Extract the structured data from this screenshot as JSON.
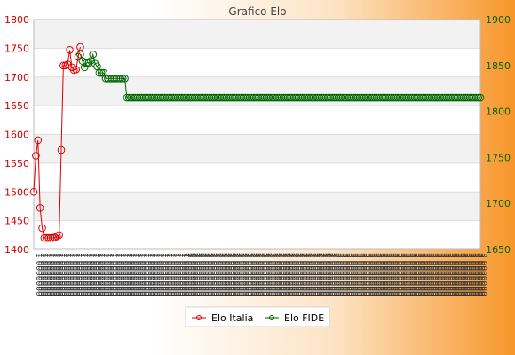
{
  "chart_data": {
    "type": "line",
    "title": "Grafico Elo",
    "y_left": {
      "min": 1400,
      "max": 1800,
      "ticks": [
        "1400",
        "1450",
        "1500",
        "1550",
        "1600",
        "1650",
        "1700",
        "1750",
        "1800"
      ]
    },
    "y_right": {
      "min": 1650,
      "max": 1900,
      "ticks": [
        "1650",
        "1700",
        "1750",
        "1800",
        "1850",
        "1900"
      ]
    },
    "grid": true,
    "legend": "bottom-center",
    "x_label_prefixes": [
      "1",
      "2",
      "3"
    ],
    "series": [
      {
        "name": "Elo Italia",
        "axis": "left",
        "color": "#dd0000",
        "x": [
          0,
          1,
          2,
          3,
          4,
          5,
          6,
          7,
          8,
          9,
          10,
          11,
          12,
          13,
          14,
          15,
          16,
          17,
          18,
          19,
          20,
          21,
          22
        ],
        "values": [
          1500,
          1563,
          1590,
          1472,
          1437,
          1420,
          1420,
          1420,
          1420,
          1420,
          1421,
          1423,
          1425,
          1573,
          1720,
          1720,
          1722,
          1747,
          1717,
          1712,
          1713,
          1735,
          1752
        ]
      },
      {
        "name": "Elo FIDE",
        "axis": "right",
        "color": "#006600",
        "x": [
          22,
          23,
          24,
          25,
          26,
          27,
          28,
          29,
          30,
          31,
          32,
          33,
          34,
          35,
          36,
          37,
          38,
          39,
          40,
          41,
          42,
          43,
          44,
          45,
          46,
          47,
          48,
          49,
          50,
          51,
          52,
          53,
          54,
          55,
          56,
          57,
          58,
          59,
          60,
          61,
          62,
          63,
          64,
          65,
          66,
          67,
          68,
          69,
          70,
          71,
          72,
          73,
          74,
          75,
          76,
          77,
          78,
          79,
          80,
          81,
          82,
          83,
          84,
          85,
          86,
          87,
          88,
          89,
          90,
          91,
          92,
          93,
          94,
          95,
          96,
          97,
          98,
          99,
          100,
          101,
          102,
          103,
          104,
          105,
          106,
          107,
          108,
          109,
          110,
          111,
          112,
          113,
          114,
          115,
          116,
          117,
          118,
          119,
          120,
          121,
          122,
          123,
          124,
          125,
          126,
          127,
          128,
          129,
          130,
          131,
          132,
          133,
          134,
          135,
          136,
          137,
          138,
          139,
          140,
          141,
          142,
          143,
          144,
          145,
          146,
          147,
          148,
          149,
          150,
          151,
          152,
          153,
          154,
          155,
          156,
          157,
          158,
          159,
          160,
          161,
          162,
          163,
          164,
          165,
          166,
          167,
          168,
          169,
          170,
          171,
          172,
          173,
          174,
          175,
          176,
          177,
          178,
          179,
          180,
          181,
          182,
          183,
          184,
          185,
          186,
          187,
          188,
          189,
          190,
          191,
          192,
          193,
          194,
          195,
          196,
          197,
          198,
          199,
          200,
          201,
          202,
          203,
          204,
          205,
          206,
          207,
          208,
          209,
          210,
          211
        ],
        "values": [
          1862,
          1855,
          1848,
          1853,
          1853,
          1855,
          1862,
          1852,
          1849,
          1842,
          1842,
          1842,
          1836,
          1836,
          1836,
          1836,
          1836,
          1836,
          1836,
          1836,
          1836,
          1836,
          1815,
          1815,
          1815,
          1815,
          1815,
          1815,
          1815,
          1815,
          1815,
          1815,
          1815,
          1815,
          1815,
          1815,
          1815,
          1815,
          1815,
          1815,
          1815,
          1815,
          1815,
          1815,
          1815,
          1815,
          1815,
          1815,
          1815,
          1815,
          1815,
          1815,
          1815,
          1815,
          1815,
          1815,
          1815,
          1815,
          1815,
          1815,
          1815,
          1815,
          1815,
          1815,
          1815,
          1815,
          1815,
          1815,
          1815,
          1815,
          1815,
          1815,
          1815,
          1815,
          1815,
          1815,
          1815,
          1815,
          1815,
          1815,
          1815,
          1815,
          1815,
          1815,
          1815,
          1815,
          1815,
          1815,
          1815,
          1815,
          1815,
          1815,
          1815,
          1815,
          1815,
          1815,
          1815,
          1815,
          1815,
          1815,
          1815,
          1815,
          1815,
          1815,
          1815,
          1815,
          1815,
          1815,
          1815,
          1815,
          1815,
          1815,
          1815,
          1815,
          1815,
          1815,
          1815,
          1815,
          1815,
          1815,
          1815,
          1815,
          1815,
          1815,
          1815,
          1815,
          1815,
          1815,
          1815,
          1815,
          1815,
          1815,
          1815,
          1815,
          1815,
          1815,
          1815,
          1815,
          1815,
          1815,
          1815,
          1815,
          1815,
          1815,
          1815,
          1815,
          1815,
          1815,
          1815,
          1815,
          1815,
          1815,
          1815,
          1815,
          1815,
          1815,
          1815,
          1815,
          1815,
          1815,
          1815,
          1815,
          1815,
          1815,
          1815,
          1815,
          1815,
          1815,
          1815,
          1815,
          1815,
          1815,
          1815,
          1815,
          1815,
          1815,
          1815,
          1815,
          1815,
          1815,
          1815,
          1815,
          1815,
          1815,
          1815,
          1815,
          1815,
          1815,
          1815,
          1815
        ]
      }
    ]
  }
}
